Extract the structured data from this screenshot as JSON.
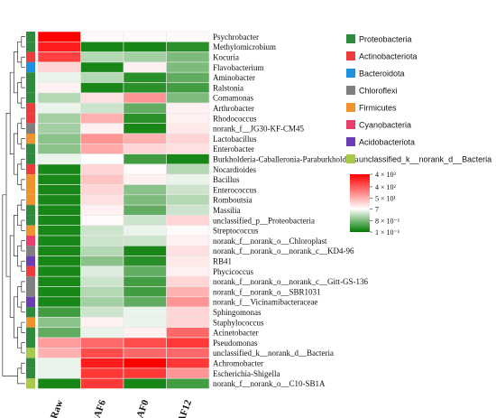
{
  "chart_data": {
    "type": "heatmap",
    "columns": [
      "Raw",
      "AF6",
      "AF0",
      "AF12"
    ],
    "rows": [
      {
        "label": "Psychrobacter",
        "phylum": "Proteobacteria",
        "values": [
          20000,
          8,
          8,
          8
        ]
      },
      {
        "label": "Methylomicrobium",
        "phylum": "Proteobacteria",
        "values": [
          2000,
          0.15,
          0.15,
          0.2
        ]
      },
      {
        "label": "Kocuria",
        "phylum": "Actinobacteriota",
        "values": [
          800,
          2,
          1.5,
          0.8
        ]
      },
      {
        "label": "Flavobacterium",
        "phylum": "Bacteroidota",
        "values": [
          20,
          0.15,
          10,
          0.8
        ]
      },
      {
        "label": "Aminobacter",
        "phylum": "Proteobacteria",
        "values": [
          5,
          2,
          0.2,
          0.5
        ]
      },
      {
        "label": "Ralstonia",
        "phylum": "Proteobacteria",
        "values": [
          10,
          0.15,
          0.2,
          0.3
        ]
      },
      {
        "label": "Comamonas",
        "phylum": "Proteobacteria",
        "values": [
          2,
          15,
          100,
          0.8
        ]
      },
      {
        "label": "Arthrobacter",
        "phylum": "Actinobacteriota",
        "values": [
          5,
          3,
          0.5,
          10
        ]
      },
      {
        "label": "Rhodococcus",
        "phylum": "Actinobacteriota",
        "values": [
          1.5,
          50,
          0.2,
          10
        ]
      },
      {
        "label": "norank_f__JG30-KF-CM45",
        "phylum": "Chloroflexi",
        "values": [
          1.5,
          10,
          0.15,
          12
        ]
      },
      {
        "label": "Lactobacillus",
        "phylum": "Firmicutes",
        "values": [
          1,
          100,
          50,
          20
        ]
      },
      {
        "label": "Enterobacter",
        "phylum": "Proteobacteria",
        "values": [
          1,
          60,
          20,
          15
        ]
      },
      {
        "label": "Burkholderia-Caballeronia-Paraburkholderia",
        "phylum": "Proteobacteria",
        "values": [
          5,
          7,
          0.3,
          0.15
        ]
      },
      {
        "label": "Nocardioides",
        "phylum": "Actinobacteriota",
        "values": [
          0.15,
          20,
          8,
          2
        ]
      },
      {
        "label": "Bacillus",
        "phylum": "Firmicutes",
        "values": [
          0.15,
          30,
          10,
          5
        ]
      },
      {
        "label": "Enterococcus",
        "phylum": "Firmicutes",
        "values": [
          0.15,
          20,
          1,
          3
        ]
      },
      {
        "label": "Romboutsia",
        "phylum": "Firmicutes",
        "values": [
          0.15,
          15,
          0.8,
          2
        ]
      },
      {
        "label": "Massilia",
        "phylum": "Proteobacteria",
        "values": [
          0.15,
          10,
          0.5,
          3
        ]
      },
      {
        "label": "unclassified_p__Proteobacteria",
        "phylum": "Proteobacteria",
        "values": [
          0.15,
          8,
          3,
          20
        ]
      },
      {
        "label": "Streptococcus",
        "phylum": "Firmicutes",
        "values": [
          0.15,
          3,
          5,
          8
        ]
      },
      {
        "label": "norank_f__norank_o__Chloroplast",
        "phylum": "Cyanobacteria",
        "values": [
          0.15,
          3,
          3,
          10
        ]
      },
      {
        "label": "norank_f__norank_o__norank_c__KD4-96",
        "phylum": "Chloroflexi",
        "values": [
          0.15,
          2,
          0.15,
          15
        ]
      },
      {
        "label": "RB41",
        "phylum": "Acidobacteriota",
        "values": [
          0.15,
          1,
          0.2,
          12
        ]
      },
      {
        "label": "Phycicoccus",
        "phylum": "Actinobacteriota",
        "values": [
          0.15,
          4,
          0.5,
          10
        ]
      },
      {
        "label": "norank_f__norank_o__norank_c__Gitt-GS-136",
        "phylum": "Chloroflexi",
        "values": [
          0.15,
          3,
          0.3,
          20
        ]
      },
      {
        "label": "norank_f__norank_o__SBR1031",
        "phylum": "Chloroflexi",
        "values": [
          0.15,
          2,
          0.3,
          50
        ]
      },
      {
        "label": "norank_f__Vicinamibacteraceae",
        "phylum": "Acidobacteriota",
        "values": [
          0.15,
          1.5,
          0.5,
          100
        ]
      },
      {
        "label": "Sphingomonas",
        "phylum": "Proteobacteria",
        "values": [
          0.3,
          3,
          5,
          20
        ]
      },
      {
        "label": "Staphylococcus",
        "phylum": "Firmicutes",
        "values": [
          1,
          10,
          5,
          20
        ]
      },
      {
        "label": "Acinetobacter",
        "phylum": "Proteobacteria",
        "values": [
          0.5,
          5,
          10,
          300
        ]
      },
      {
        "label": "Pseudomonas",
        "phylum": "Proteobacteria",
        "values": [
          80,
          300,
          600,
          1000
        ]
      },
      {
        "label": "unclassified_k__norank_d__Bacteria",
        "phylum": "unclassified_k__norank_d__Bacteria",
        "values": [
          50,
          600,
          300,
          300
        ]
      },
      {
        "label": "Achromobacter",
        "phylum": "Proteobacteria",
        "values": [
          5,
          2000,
          4000,
          1000
        ]
      },
      {
        "label": "Escherichia-Shigella",
        "phylum": "Proteobacteria",
        "values": [
          5,
          1000,
          1000,
          100
        ]
      },
      {
        "label": "norank_f__norank_o__C10-SB1A",
        "phylum": "unclassified_k__norank_d__Bacteria",
        "values": [
          0.15,
          1000,
          0.15,
          0.3
        ]
      }
    ],
    "legend": [
      {
        "name": "Proteobacteria",
        "color": "#2e8b3e"
      },
      {
        "name": "Actinobacteriota",
        "color": "#ee3b3b"
      },
      {
        "name": "Bacteroidota",
        "color": "#1e90e0"
      },
      {
        "name": "Chloroflexi",
        "color": "#7f7f7f"
      },
      {
        "name": "Firmicutes",
        "color": "#f0922e"
      },
      {
        "name": "Cyanobacteria",
        "color": "#e83e6c"
      },
      {
        "name": "Acidobacteriota",
        "color": "#6a3fb5"
      },
      {
        "name": "unclassified_k__norank_d__Bacteria",
        "color": "#a8c94a"
      }
    ],
    "color_scale": {
      "type": "log",
      "tick_labels": [
        "4 × 10³",
        "4 × 10²",
        "5 × 10¹",
        "7",
        "8 × 10⁻¹",
        "1 × 10⁻¹"
      ],
      "tick_values": [
        4000,
        400,
        50,
        7,
        0.8,
        0.1
      ],
      "range": [
        0.1,
        4000
      ],
      "low_color": "#007a00",
      "mid_color": "#ffffff",
      "high_color": "#ff0000"
    },
    "grid": true
  }
}
